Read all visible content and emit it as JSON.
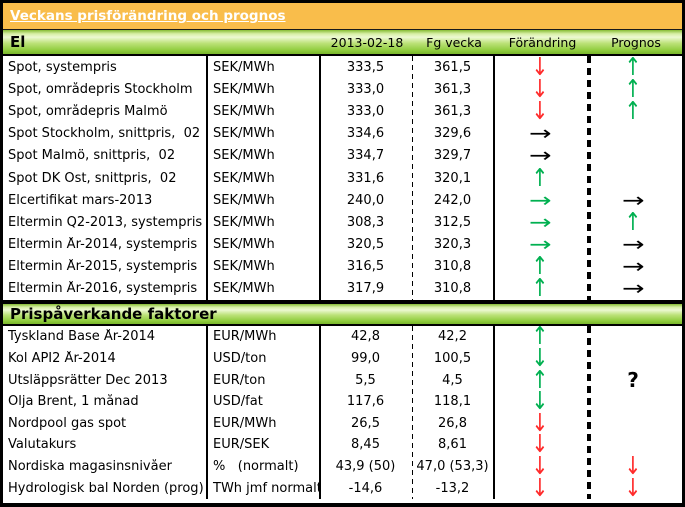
{
  "title": "Veckans prisförändring och prognos",
  "columns": {
    "date": "2013-02-18",
    "prev": "Fg vecka",
    "change": "Förändring",
    "forecast": "Prognos"
  },
  "colors": {
    "header_orange": "#F9BD4B",
    "section_green": "#8FCC3D",
    "arrow_red": "#FF2B2B",
    "arrow_green": "#00B050",
    "arrow_black": "#000000"
  },
  "arrows": {
    "up-green": {
      "glyph": "↑",
      "color": "#00B050",
      "orient": "v"
    },
    "down-green": {
      "glyph": "↓",
      "color": "#00B050",
      "orient": "v"
    },
    "right-green": {
      "glyph": "→",
      "color": "#00B050",
      "orient": "h"
    },
    "down-red": {
      "glyph": "↓",
      "color": "#FF2B2B",
      "orient": "v"
    },
    "right-black": {
      "glyph": "→",
      "color": "#000000",
      "orient": "h"
    },
    "question": {
      "glyph": "?",
      "color": "#000000",
      "orient": "q"
    }
  },
  "sections": [
    {
      "label": "El",
      "rows": [
        {
          "name": "Spot, systempris",
          "unit": "SEK/MWh",
          "current": "333,5",
          "prev": "361,5",
          "change": "down-red",
          "forecast": "up-green"
        },
        {
          "name": "Spot, områdepris Stockholm",
          "unit": "SEK/MWh",
          "current": "333,0",
          "prev": "361,3",
          "change": "down-red",
          "forecast": "up-green"
        },
        {
          "name": "Spot, områdepris Malmö",
          "unit": "SEK/MWh",
          "current": "333,0",
          "prev": "361,3",
          "change": "down-red",
          "forecast": "up-green"
        },
        {
          "name": "Spot Stockholm, snittpris,  02",
          "unit": "SEK/MWh",
          "current": "334,6",
          "prev": "329,6",
          "change": "right-black",
          "forecast": ""
        },
        {
          "name": "Spot Malmö, snittpris,  02",
          "unit": "SEK/MWh",
          "current": "334,7",
          "prev": "329,7",
          "change": "right-black",
          "forecast": ""
        },
        {
          "name": "Spot DK Öst, snittpris,  02",
          "unit": "SEK/MWh",
          "current": "331,6",
          "prev": "320,1",
          "change": "up-green",
          "forecast": ""
        },
        {
          "name": "Elcertifikat mars-2013",
          "unit": "SEK/MWh",
          "current": "240,0",
          "prev": "242,0",
          "change": "right-green",
          "forecast": "right-black"
        },
        {
          "name": "Eltermin Q2-2013, systempris",
          "unit": "SEK/MWh",
          "current": "308,3",
          "prev": "312,5",
          "change": "right-green",
          "forecast": "up-green"
        },
        {
          "name": "Eltermin År-2014, systempris",
          "unit": "SEK/MWh",
          "current": "320,5",
          "prev": "320,3",
          "change": "right-green",
          "forecast": "right-black"
        },
        {
          "name": "Eltermin År-2015, systempris",
          "unit": "SEK/MWh",
          "current": "316,5",
          "prev": "310,8",
          "change": "up-green",
          "forecast": "right-black"
        },
        {
          "name": "Eltermin År-2016, systempris",
          "unit": "SEK/MWh",
          "current": "317,9",
          "prev": "310,8",
          "change": "up-green",
          "forecast": "right-black"
        }
      ]
    },
    {
      "label": "Prispåverkande faktorer",
      "rows": [
        {
          "name": "Tyskland Base År-2014",
          "unit": "EUR/MWh",
          "current": "42,8",
          "prev": "42,2",
          "change": "up-green",
          "forecast": ""
        },
        {
          "name": "Kol API2 År-2014",
          "unit": "USD/ton",
          "current": "99,0",
          "prev": "100,5",
          "change": "down-green",
          "forecast": ""
        },
        {
          "name": "Utsläppsrätter Dec 2013",
          "unit": "EUR/ton",
          "current": "5,5",
          "prev": "4,5",
          "change": "up-green",
          "forecast": "question"
        },
        {
          "name": "Olja Brent, 1 månad",
          "unit": "USD/fat",
          "current": "117,6",
          "prev": "118,1",
          "change": "down-green",
          "forecast": ""
        },
        {
          "name": "Nordpool gas spot",
          "unit": "EUR/MWh",
          "current": "26,5",
          "prev": "26,8",
          "change": "down-red",
          "forecast": ""
        },
        {
          "name": "Valutakurs",
          "unit": "EUR/SEK",
          "current": "8,45",
          "prev": "8,61",
          "change": "down-red",
          "forecast": ""
        },
        {
          "name": "Nordiska magasinsnivåer",
          "unit": "%   (normalt)",
          "current": "43,9 (50)",
          "prev": "47,0 (53,3)",
          "change": "down-red",
          "forecast": "down-red"
        },
        {
          "name": "Hydrologisk bal Norden (prog)",
          "unit": "TWh jmf normalt",
          "current": "-14,6",
          "prev": "-13,2",
          "change": "down-red",
          "forecast": "down-red"
        }
      ]
    }
  ]
}
